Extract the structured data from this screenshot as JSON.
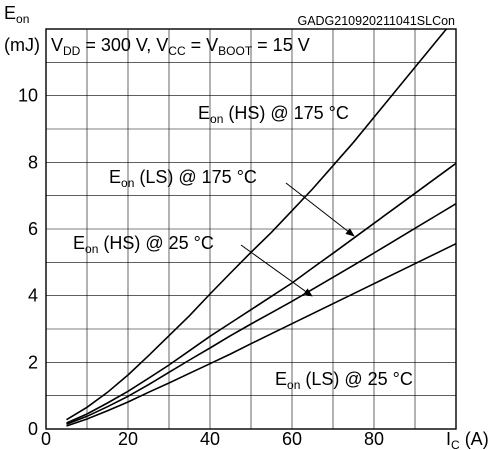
{
  "chart_data": {
    "type": "line",
    "code": "GADG210920211041SLCon",
    "ylabel_main": "E",
    "ylabel_sub": "on",
    "ylabel_unit": "(mJ)",
    "xlabel_main": "I",
    "xlabel_sub": "C",
    "xlabel_unit": " (A)",
    "condition": {
      "p1": "V",
      "s1": "DD",
      "p2": " = 300 V, V",
      "s2": "CC",
      "p3": " = V",
      "s3": "BOOT",
      "p4": " = 15 V"
    },
    "xlim": [
      0,
      100
    ],
    "ylim": [
      0,
      12
    ],
    "xticks": [
      "0",
      "20",
      "40",
      "60",
      "80"
    ],
    "yticks": [
      "0",
      "2",
      "4",
      "6",
      "8",
      "10"
    ],
    "grid": true,
    "series": [
      {
        "name": "Eon (HS) @ 175 °C",
        "label": {
          "main": "E",
          "sub": "on",
          "rest": " (HS) @ 175 °C"
        },
        "x": [
          5,
          10,
          15,
          20,
          25,
          30,
          35,
          40,
          45,
          50,
          55,
          60,
          65,
          70,
          75,
          80,
          85,
          90,
          95,
          100
        ],
        "y": [
          0.28,
          0.65,
          1.1,
          1.62,
          2.2,
          2.8,
          3.4,
          4.05,
          4.68,
          5.3,
          5.9,
          6.55,
          7.2,
          7.9,
          8.6,
          9.35,
          10.1,
          10.85,
          11.6,
          12.35
        ]
      },
      {
        "name": "Eon (LS) @ 175 °C",
        "label": {
          "main": "E",
          "sub": "on",
          "rest": " (LS) @ 175 °C"
        },
        "x": [
          5,
          10,
          15,
          20,
          25,
          30,
          35,
          40,
          45,
          50,
          55,
          60,
          65,
          70,
          75,
          80,
          85,
          90,
          95,
          100
        ],
        "y": [
          0.18,
          0.45,
          0.78,
          1.13,
          1.52,
          1.92,
          2.35,
          2.78,
          3.18,
          3.58,
          3.98,
          4.38,
          4.83,
          5.27,
          5.72,
          6.17,
          6.62,
          7.07,
          7.52,
          7.97
        ]
      },
      {
        "name": "Eon (HS) @ 25 °C",
        "label": {
          "main": "E",
          "sub": "on",
          "rest": " (HS) @ 25 °C"
        },
        "x": [
          5,
          10,
          15,
          20,
          25,
          30,
          35,
          40,
          45,
          50,
          55,
          60,
          65,
          70,
          75,
          80,
          85,
          90,
          95,
          100
        ],
        "y": [
          0.14,
          0.38,
          0.67,
          0.98,
          1.33,
          1.7,
          2.07,
          2.43,
          2.8,
          3.15,
          3.49,
          3.83,
          4.19,
          4.55,
          4.91,
          5.28,
          5.65,
          6.02,
          6.39,
          6.76
        ]
      },
      {
        "name": "Eon (LS) @ 25 °C",
        "label": {
          "main": "E",
          "sub": "on",
          "rest": " (LS) @ 25 °C"
        },
        "x": [
          5,
          10,
          15,
          20,
          25,
          30,
          35,
          40,
          45,
          50,
          55,
          60,
          65,
          70,
          75,
          80,
          85,
          90,
          95,
          100
        ],
        "y": [
          0.09,
          0.3,
          0.55,
          0.81,
          1.1,
          1.38,
          1.67,
          1.96,
          2.25,
          2.56,
          2.86,
          3.16,
          3.46,
          3.76,
          4.06,
          4.36,
          4.66,
          4.96,
          5.26,
          5.56
        ]
      }
    ]
  }
}
